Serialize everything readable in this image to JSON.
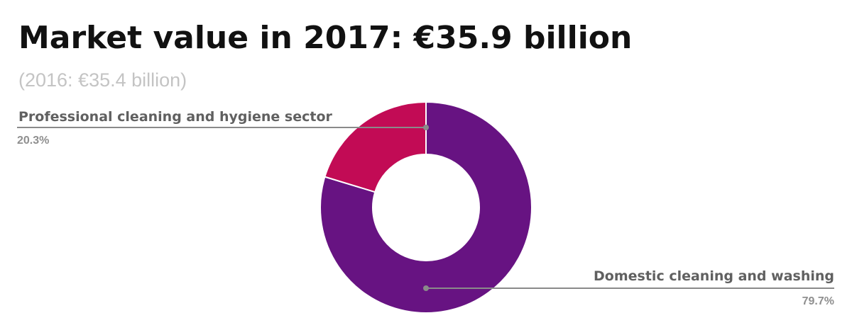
{
  "header": {
    "title": "Market value in 2017: €35.9 billion",
    "subtitle": "(2016: €35.4 billion)"
  },
  "chart_data": {
    "type": "pie",
    "donut": true,
    "categories": [
      "Domestic cleaning and washing",
      "Professional cleaning and hygiene sector"
    ],
    "values": [
      79.7,
      20.3
    ],
    "value_labels": [
      "79.7%",
      "20.3%"
    ],
    "colors": [
      "#671382",
      "#c20b55"
    ],
    "leader_color": "#8a8a8a",
    "legend": "none"
  }
}
